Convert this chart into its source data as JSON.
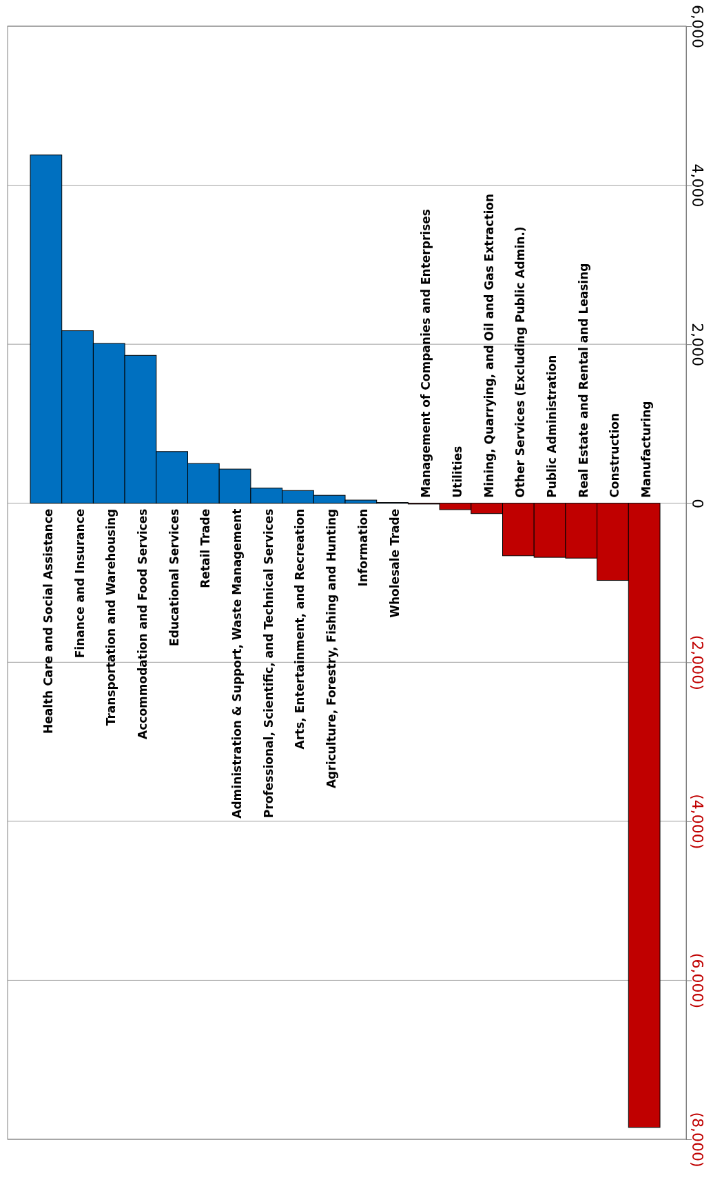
{
  "chart_data": {
    "type": "bar",
    "categories": [
      "Health Care and Social Assistance",
      "Finance and Insurance",
      "Transportation and Warehousing",
      "Accommodation and Food Services",
      "Educational Services",
      "Retail Trade",
      "Administration & Support, Waste Management",
      "Professional, Scientific, and Technical Services",
      "Arts, Entertainment, and Recreation",
      "Agriculture, Forestry, Fishing and Hunting",
      "Information",
      "Wholesale Trade",
      "Management of Companies and Enterprises",
      "Utilities",
      "Mining, Quarrying, and Oil and Gas Extraction",
      "Other Services (Excluding Public Admin.)",
      "Public Administration",
      "Real Estate and Rental and Leasing",
      "Construction",
      "Manufacturing"
    ],
    "values": [
      4380,
      2170,
      2010,
      1860,
      650,
      500,
      430,
      190,
      160,
      100,
      40,
      10,
      -10,
      -80,
      -130,
      -660,
      -680,
      -690,
      -970,
      -7850
    ],
    "colors": [
      "#0070c0",
      "#0070c0",
      "#0070c0",
      "#0070c0",
      "#0070c0",
      "#0070c0",
      "#0070c0",
      "#0070c0",
      "#0070c0",
      "#0070c0",
      "#0070c0",
      "#0070c0",
      "#c00000",
      "#c00000",
      "#c00000",
      "#c00000",
      "#c00000",
      "#c00000",
      "#c00000",
      "#c00000"
    ],
    "ylim": [
      -8000,
      6000
    ],
    "yticks": [
      {
        "value": -8000,
        "label": "(8,000)"
      },
      {
        "value": -6000,
        "label": "(6,000)"
      },
      {
        "value": -4000,
        "label": "(4,000)"
      },
      {
        "value": -2000,
        "label": "(2,000)"
      },
      0,
      {
        "value": 2000,
        "label": "2,000"
      },
      {
        "value": 4000,
        "label": "4,000"
      },
      {
        "value": 6000,
        "label": "6,000"
      }
    ],
    "grid": "y"
  }
}
